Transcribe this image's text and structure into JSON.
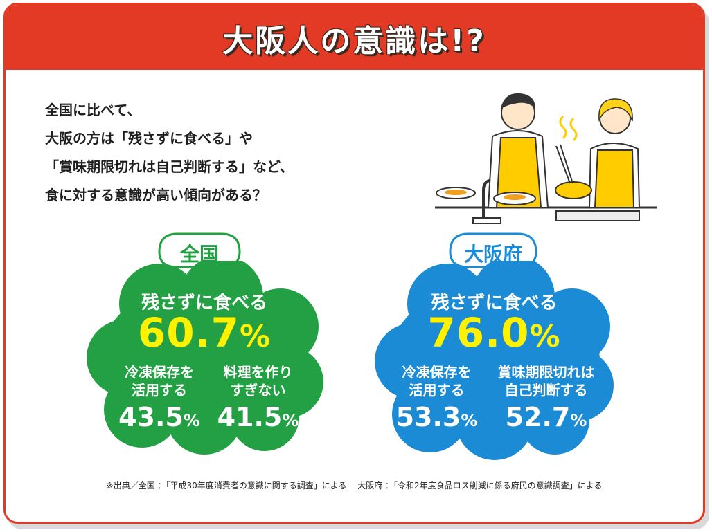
{
  "header": {
    "title": "大阪人の意識は!?"
  },
  "intro": {
    "lines": [
      "全国に比べて、",
      "大阪の方は「残さずに食べる」や",
      "「賞味期限切れは自己判断する」など、",
      "食に対する意識が高い傾向がある？"
    ]
  },
  "colors": {
    "red": "#e23a24",
    "green": "#23a043",
    "blue": "#1a8bd4",
    "yellow": "#fff200"
  },
  "national": {
    "tag": "全国",
    "main_label": "残さずに食べる",
    "main_value": "60.7",
    "main_unit": "%",
    "item1_label_1": "冷凍保存を",
    "item1_label_2": "活用する",
    "item1_value": "43.5",
    "item1_unit": "%",
    "item2_label_1": "料理を作り",
    "item2_label_2": "すぎない",
    "item2_value": "41.5",
    "item2_unit": "%"
  },
  "osaka": {
    "tag": "大阪府",
    "main_label": "残さずに食べる",
    "main_value": "76.0",
    "main_unit": "%",
    "item1_label_1": "冷凍保存を",
    "item1_label_2": "活用する",
    "item1_value": "53.3",
    "item1_unit": "%",
    "item2_label_1": "賞味期限切れは",
    "item2_label_2": "自己判断する",
    "item2_value": "52.7",
    "item2_unit": "%"
  },
  "footnote": "※出典／全国 ：「平成30年度消費者の意識に関する調査」による　 大阪府 ：「令和2年度食品ロス削減に係る府民の意識調査」による"
}
